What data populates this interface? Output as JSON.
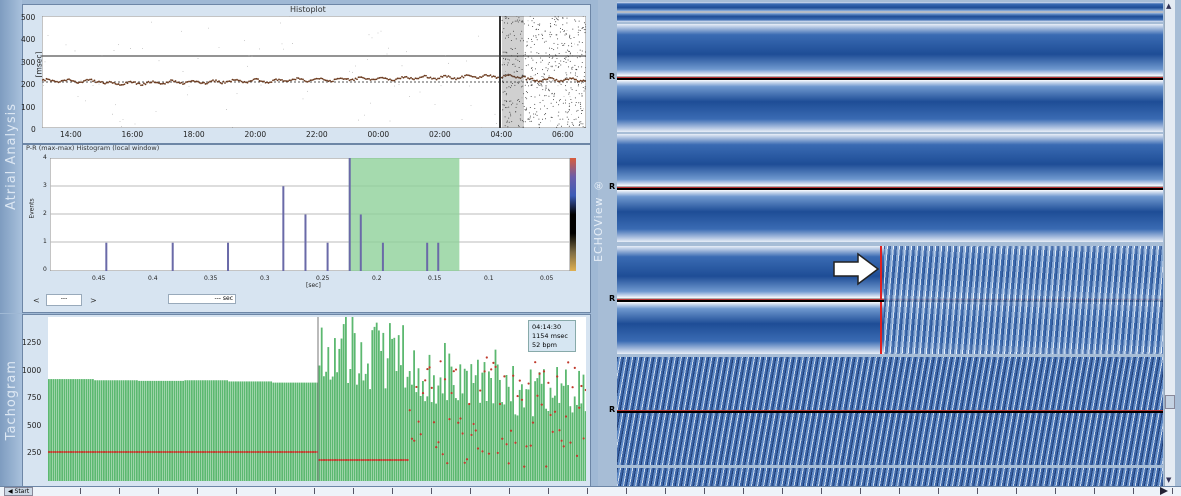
{
  "side_labels": {
    "atrial": "Atrial Analysis",
    "tachogram": "Tachogram",
    "echoview": "ECHOView ®"
  },
  "histoplot": {
    "title": "Histoplot",
    "ylabel": "[msec]",
    "y_ticks": [
      "500",
      "400",
      "300",
      "200",
      "100",
      "0"
    ],
    "x_ticks": [
      "14:00",
      "16:00",
      "18:00",
      "20:00",
      "22:00",
      "00:00",
      "02:00",
      "04:00",
      "06:00"
    ]
  },
  "histogram": {
    "title": "P-R (max-max) Histogram (local window)",
    "ylabel": "Events",
    "y_ticks": [
      "4",
      "3",
      "2",
      "1",
      "0"
    ],
    "x_ticks": [
      "0.45",
      "0.4",
      "0.35",
      "0.3",
      "0.25",
      "0.2",
      "0.15",
      "0.1",
      "0.05"
    ],
    "xlabel": "[sec]",
    "scroll_left": "<",
    "scroll_value": "---",
    "scroll_right": ">",
    "sec_value": "--- sec"
  },
  "tachogram": {
    "y_ticks": [
      "1250",
      "1000",
      "750",
      "500",
      "250"
    ],
    "tooltip_time": "04:14:30",
    "tooltip_interval": "1154 msec",
    "tooltip_bpm": "52 bpm"
  },
  "echo": {
    "r_label": "R"
  },
  "bottom_bar": {
    "start_label": "◀ Start",
    "end_icon": "play-right-icon"
  },
  "colors": {
    "tachogram_bar": "#5cb870",
    "tachogram_dot": "#c0392b",
    "highlight_band": "#8fd19a",
    "echo_blue": "#2b5aa0",
    "marker_red": "#e02020"
  },
  "chart_data": [
    {
      "type": "scatter",
      "title": "Histoplot",
      "xlabel": "",
      "ylabel": "[msec]",
      "ylim": [
        0,
        500
      ],
      "x_categories": [
        "14:00",
        "16:00",
        "18:00",
        "20:00",
        "22:00",
        "00:00",
        "02:00",
        "04:00",
        "06:00"
      ],
      "series": [
        {
          "values": [
            210,
            200,
            205,
            210,
            215,
            220,
            225,
            230,
            215
          ]
        }
      ]
    },
    {
      "type": "bar",
      "title": "P-R (max-max) Histogram (local window)",
      "xlabel": "[sec]",
      "ylabel": "Events",
      "ylim": [
        0,
        4
      ],
      "x": [
        0.42,
        0.36,
        0.31,
        0.26,
        0.24,
        0.22,
        0.2,
        0.19,
        0.17,
        0.13,
        0.12
      ],
      "values": [
        1,
        1,
        1,
        3,
        2,
        1,
        4,
        2,
        1,
        1,
        1
      ],
      "highlight_range": [
        0.1,
        0.2
      ]
    },
    {
      "type": "bar",
      "title": "",
      "xlabel": "",
      "ylabel": "",
      "ylim": [
        0,
        1400
      ],
      "series": [
        {
          "values": [
            870,
            860,
            855,
            860,
            850,
            840,
            1400,
            1300,
            1200,
            1100,
            1000,
            950
          ]
        }
      ]
    }
  ]
}
